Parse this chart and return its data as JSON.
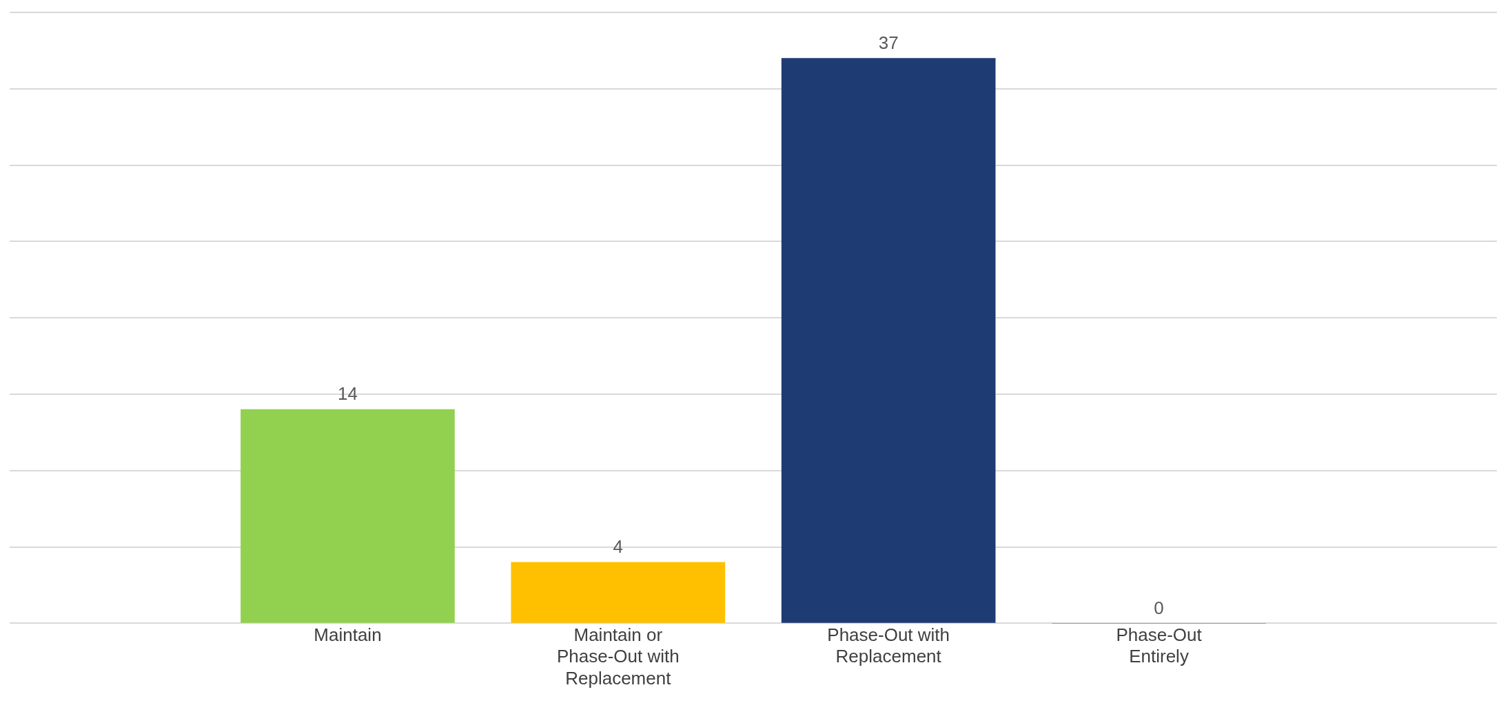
{
  "chart_data": {
    "type": "bar",
    "categories": [
      "Maintain",
      "Maintain or Phase-Out with Replacement",
      "Phase-Out with Replacement",
      "Phase-Out Entirely"
    ],
    "values": [
      14,
      4,
      37,
      0
    ],
    "colors": [
      "#92d050",
      "#ffc000",
      "#1f3b73",
      "#1f3b73"
    ],
    "ylim": [
      0,
      40
    ],
    "yticks": [
      {
        "value": 0,
        "label": null
      },
      {
        "value": 5,
        "label": null
      },
      {
        "value": 10,
        "label": null
      },
      {
        "value": 15,
        "label": null
      },
      {
        "value": 20,
        "label": null
      },
      {
        "value": 25,
        "label": null
      },
      {
        "value": 30,
        "label": null
      },
      {
        "value": 35,
        "label": null
      },
      {
        "value": 40,
        "label": null
      }
    ],
    "grid": "y",
    "tick_labels": "x",
    "data_labels": true
  }
}
